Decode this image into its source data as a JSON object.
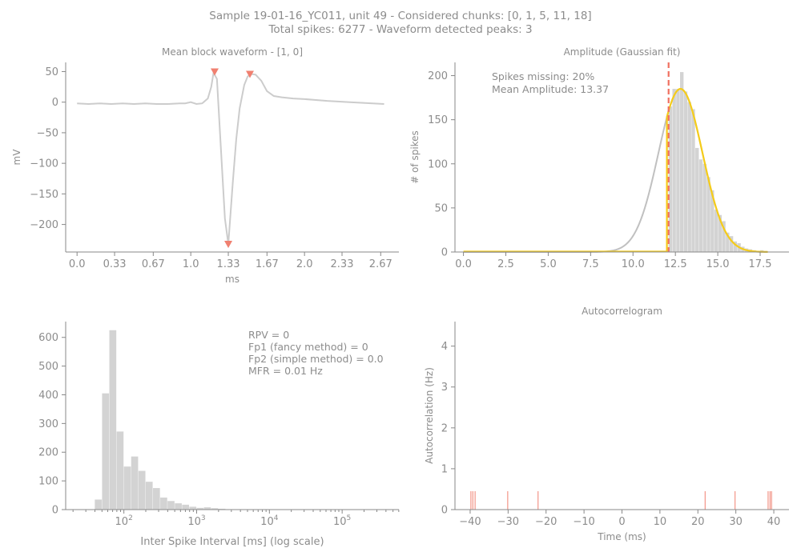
{
  "figure": {
    "title_line1": "Sample 19-01-16_YC011, unit 49 - Considered chunks: [0, 1, 5, 11, 18]",
    "title_line2": "Total spikes: 6277 - Waveform detected peaks: 3"
  },
  "colors": {
    "axis": "#888888",
    "bar": "#d3d3d3",
    "line": "#cccccc",
    "peak": "#f08070",
    "gauss": "#c0c0c0",
    "fit": "#f5cc1a",
    "threshold": "#f07060"
  },
  "chart_data": [
    {
      "id": "waveform",
      "type": "line",
      "title": "Mean block waveform - [1, 0]",
      "xlabel": "ms",
      "ylabel": "mV",
      "xlim": [
        -0.1,
        2.83
      ],
      "ylim": [
        -245,
        65
      ],
      "xticks": [
        0,
        0.33,
        0.67,
        1.0,
        1.33,
        1.67,
        2.0,
        2.33,
        2.67
      ],
      "xtick_labels": [
        "0.0",
        "0.33",
        "0.67",
        "1.0",
        "1.33",
        "1.67",
        "2.0",
        "2.33",
        "2.67"
      ],
      "yticks": [
        50,
        0,
        -50,
        -100,
        -150,
        -200
      ],
      "ytick_labels": [
        "50",
        "0",
        "−50",
        "−100",
        "−150",
        "−200"
      ],
      "x": [
        0,
        0.1,
        0.2,
        0.3,
        0.4,
        0.5,
        0.6,
        0.7,
        0.8,
        0.9,
        0.95,
        1.0,
        1.05,
        1.1,
        1.15,
        1.18,
        1.2,
        1.23,
        1.26,
        1.3,
        1.33,
        1.37,
        1.4,
        1.43,
        1.47,
        1.5,
        1.53,
        1.57,
        1.62,
        1.67,
        1.73,
        1.8,
        1.9,
        2.0,
        2.2,
        2.4,
        2.6,
        2.7
      ],
      "y": [
        -2,
        -3,
        -2,
        -3,
        -2,
        -3,
        -2,
        -3,
        -3,
        -2,
        -2,
        0,
        -3,
        -2,
        6,
        25,
        48,
        38,
        -60,
        -190,
        -232,
        -130,
        -60,
        -10,
        28,
        42,
        46,
        45,
        35,
        18,
        10,
        8,
        6,
        5,
        2,
        0,
        -2,
        -3
      ],
      "peaks": [
        {
          "x": 1.21,
          "y": 50
        },
        {
          "x": 1.33,
          "y": -232
        },
        {
          "x": 1.52,
          "y": 46
        }
      ]
    },
    {
      "id": "amplitude",
      "type": "bar",
      "title": "Amplitude (Gaussian fit)",
      "ylabel": "# of spikes",
      "xlim": [
        -0.5,
        19.2
      ],
      "ylim": [
        0,
        215
      ],
      "xticks": [
        0,
        2.5,
        5,
        7.5,
        10,
        12.5,
        15,
        17.5
      ],
      "xtick_labels": [
        "0.0",
        "2.5",
        "5.0",
        "7.5",
        "10.0",
        "12.5",
        "15.0",
        "17.5"
      ],
      "yticks": [
        0,
        50,
        100,
        150,
        200
      ],
      "annotations": [
        "Spikes missing: 20%",
        "Mean Amplitude: 13.37"
      ],
      "bin_width": 0.225,
      "bins_x": [
        12.1,
        12.325,
        12.55,
        12.775,
        13.0,
        13.225,
        13.45,
        13.675,
        13.9,
        14.125,
        14.35,
        14.575,
        14.8,
        15.025,
        15.25,
        15.475,
        15.7,
        15.925,
        16.15,
        16.375,
        16.6,
        16.825,
        17.05,
        17.275,
        17.5,
        17.725
      ],
      "values": [
        165,
        185,
        185,
        204,
        182,
        170,
        162,
        118,
        105,
        100,
        85,
        70,
        48,
        42,
        35,
        22,
        18,
        12,
        10,
        6,
        4,
        3,
        2,
        1,
        2,
        1
      ],
      "gaussian": {
        "mean": 12.8,
        "sd": 1.3,
        "peak": 185
      },
      "fit_start": 12.0,
      "threshold_x": 12.1
    },
    {
      "id": "isi",
      "type": "bar",
      "xlabel": "Inter Spike Interval [ms] (log scale)",
      "xscale": "log",
      "xlim_log10": [
        1.2,
        5.78
      ],
      "ylim": [
        0,
        655
      ],
      "xticks_log10": [
        2,
        3,
        4,
        5
      ],
      "xtick_labels": [
        "10",
        "10",
        "10",
        "10"
      ],
      "xtick_exponents": [
        "2",
        "3",
        "4",
        "5"
      ],
      "yticks": [
        0,
        100,
        200,
        300,
        400,
        500,
        600
      ],
      "annotations": [
        "RPV = 0",
        "Fp1 (fancy method) = 0",
        "Fp2 (simple method) = 0.0",
        "MFR = 0.01 Hz"
      ],
      "bin_edges_log10": [
        1.6,
        1.7,
        1.8,
        1.9,
        2.0,
        2.1,
        2.2,
        2.3,
        2.4,
        2.5,
        2.6,
        2.7,
        2.8,
        2.9,
        3.0,
        3.1,
        3.2,
        3.3,
        3.4
      ],
      "values": [
        35,
        405,
        625,
        272,
        150,
        185,
        135,
        97,
        75,
        42,
        30,
        22,
        17,
        10,
        6,
        8,
        5,
        3
      ]
    },
    {
      "id": "autocorrelogram",
      "type": "bar",
      "title": "Autocorrelogram",
      "xlabel": "Time (ms)",
      "ylabel": "Autocorrelation (Hz)",
      "xlim": [
        -44,
        44
      ],
      "ylim": [
        0,
        4.6
      ],
      "xticks": [
        -40,
        -30,
        -20,
        -10,
        0,
        10,
        20,
        30,
        40
      ],
      "xtick_labels": [
        "−40",
        "−30",
        "−20",
        "−10",
        "0",
        "10",
        "20",
        "30",
        "40"
      ],
      "yticks": [
        0,
        1,
        2,
        3,
        4
      ],
      "spikes_x": [
        -39.8,
        -39.3,
        -38.7,
        -30.1,
        -22.1,
        21.9,
        29.8,
        38.5,
        39.0,
        39.4
      ],
      "spike_height": 0.45
    }
  ]
}
